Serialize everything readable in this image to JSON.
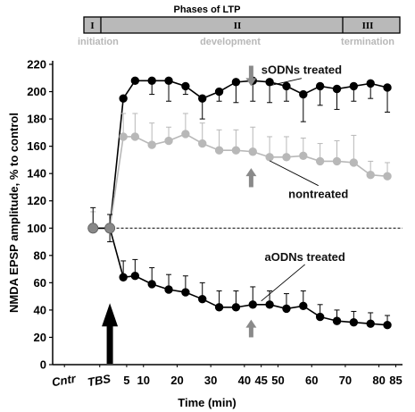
{
  "chart_data": {
    "type": "line",
    "xlabel": "Time (min)",
    "ylabel": "NMDA EPSP amplitude, % to control",
    "ylim": [
      0,
      220
    ],
    "yticks": [
      0,
      20,
      40,
      60,
      80,
      100,
      120,
      140,
      160,
      180,
      200,
      220
    ],
    "xlim": [
      -17,
      87
    ],
    "xtick_labels": [
      {
        "x": -13.5,
        "label": "Cntr",
        "italic": true
      },
      {
        "x": -3,
        "label": "TBS",
        "italic": true
      },
      {
        "x": 5,
        "label": "5"
      },
      {
        "x": 10,
        "label": "10"
      },
      {
        "x": 20,
        "label": "20"
      },
      {
        "x": 30,
        "label": "30"
      },
      {
        "x": 40,
        "label": "40"
      },
      {
        "x": 45,
        "label": "45"
      },
      {
        "x": 50,
        "label": "50"
      },
      {
        "x": 60,
        "label": "60"
      },
      {
        "x": 70,
        "label": "70"
      },
      {
        "x": 80,
        "label": "80"
      },
      {
        "x": 85,
        "label": "85"
      }
    ],
    "reference_line": 100,
    "tbs_arrow_x": 0,
    "series": [
      {
        "name": "sODNs treated",
        "color": "#000000",
        "x": [
          -5,
          0,
          4,
          7.5,
          12.5,
          17.5,
          22.5,
          27.5,
          32.5,
          37.5,
          42.5,
          47.5,
          52.5,
          57.5,
          62.5,
          67.5,
          72.5,
          77.5,
          82.5
        ],
        "y": [
          100,
          100,
          195,
          208,
          208,
          208,
          204,
          195,
          200,
          207,
          208,
          207,
          204,
          198,
          204,
          202,
          204,
          206,
          203
        ],
        "err": [
          0,
          10,
          0,
          0,
          10,
          15,
          6,
          15,
          7,
          15,
          15,
          15,
          11,
          20,
          14,
          15,
          11,
          11,
          18
        ]
      },
      {
        "name": "nontreated",
        "color": "#b8b8b8",
        "x": [
          -5,
          0,
          4,
          7.5,
          12.5,
          17.5,
          22.5,
          27.5,
          32.5,
          37.5,
          42.5,
          47.5,
          52.5,
          57.5,
          62.5,
          67.5,
          72.5,
          77.5,
          82.5
        ],
        "y": [
          100,
          100,
          167,
          167,
          161,
          164,
          169,
          162,
          157,
          157,
          156,
          152,
          152,
          153,
          149,
          149,
          148,
          139,
          138
        ],
        "err": [
          12,
          10,
          17,
          17,
          16,
          10,
          15,
          15,
          15,
          15,
          18,
          15,
          15,
          13,
          13,
          15,
          20,
          10,
          10
        ]
      },
      {
        "name": "aODNs treated",
        "color": "#000000",
        "x": [
          -5,
          0,
          4,
          7.5,
          12.5,
          17.5,
          22.5,
          27.5,
          32.5,
          37.5,
          42.5,
          47.5,
          52.5,
          57.5,
          62.5,
          67.5,
          72.5,
          77.5,
          82.5
        ],
        "y": [
          100,
          100,
          64,
          65,
          59,
          55,
          53,
          48,
          42,
          42,
          44,
          44,
          41,
          43,
          35,
          32,
          31,
          30,
          29
        ],
        "err": [
          15,
          10,
          12,
          12,
          12,
          11,
          12,
          12,
          12,
          12,
          13,
          10,
          11,
          11,
          9,
          8,
          8,
          8,
          7
        ]
      }
    ],
    "annotations": [
      {
        "text": "sODNs treated",
        "x": 57,
        "y": 213
      },
      {
        "text": "nontreated",
        "x": 62,
        "y": 122
      },
      {
        "text": "aODNs treated",
        "x": 58,
        "y": 76
      }
    ],
    "gray_arrows": [
      {
        "x": 42,
        "y_from": 219,
        "y_to": 204,
        "direction": "down"
      },
      {
        "x": 42,
        "y_from": 130,
        "y_to": 144,
        "direction": "up"
      },
      {
        "x": 42,
        "y_from": 20,
        "y_to": 33,
        "direction": "up"
      }
    ]
  },
  "phases": {
    "title": "Phases of LTP",
    "segments": [
      {
        "roman": "I",
        "name": "initiation"
      },
      {
        "roman": "II",
        "name": "development"
      },
      {
        "roman": "III",
        "name": "termination"
      }
    ]
  }
}
